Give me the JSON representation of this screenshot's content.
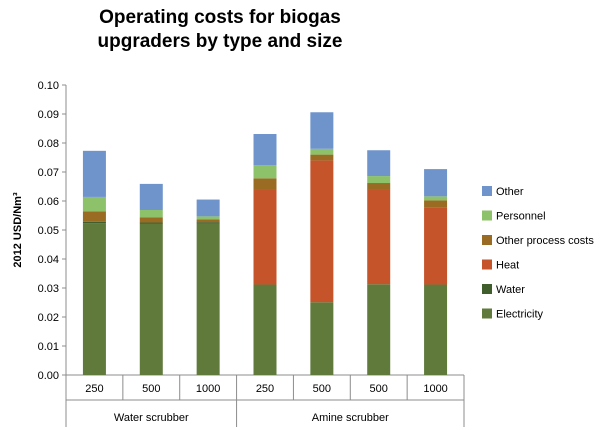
{
  "chart_data": {
    "type": "bar",
    "stacked": true,
    "title_lines": [
      "Operating costs for biogas",
      "upgraders by type and size"
    ],
    "ylabel": "2012 USD/Nm³",
    "ylim": [
      0,
      0.1
    ],
    "yticks": [
      "0.00",
      "0.01",
      "0.02",
      "0.03",
      "0.04",
      "0.05",
      "0.06",
      "0.07",
      "0.08",
      "0.09",
      "0.10"
    ],
    "categories": [
      "250",
      "500",
      "1000",
      "250",
      "500",
      "500",
      "1000"
    ],
    "groups": [
      {
        "label": "Water scrubber",
        "start": 0,
        "count": 3
      },
      {
        "label": "Amine scrubber",
        "start": 3,
        "count": 4
      }
    ],
    "series": [
      {
        "name": "Electricity",
        "color": "#5f7a3a",
        "values": [
          0.0523,
          0.0521,
          0.0522,
          0.0312,
          0.0251,
          0.0313,
          0.0312
        ]
      },
      {
        "name": "Water",
        "color": "#3f5e2b",
        "values": [
          0.0005,
          0.0005,
          0.0005,
          0.0,
          0.0,
          0.0,
          0.0
        ]
      },
      {
        "name": "Heat",
        "color": "#c6542a",
        "values": [
          0.0,
          0.0,
          0.0,
          0.0326,
          0.0489,
          0.0325,
          0.0265
        ]
      },
      {
        "name": "Other process costs",
        "color": "#9a6b22",
        "values": [
          0.0036,
          0.0018,
          0.001,
          0.004,
          0.002,
          0.0024,
          0.0025
        ]
      },
      {
        "name": "Personnel",
        "color": "#8dc26a",
        "values": [
          0.005,
          0.0025,
          0.001,
          0.0045,
          0.002,
          0.0024,
          0.0014
        ]
      },
      {
        "name": "Other",
        "color": "#6f94cc",
        "values": [
          0.0159,
          0.009,
          0.0058,
          0.0108,
          0.0126,
          0.0089,
          0.0094
        ]
      }
    ],
    "legend_order": [
      "Other",
      "Personnel",
      "Other process costs",
      "Heat",
      "Water",
      "Electricity"
    ],
    "legend_position": "right",
    "grid": false
  }
}
